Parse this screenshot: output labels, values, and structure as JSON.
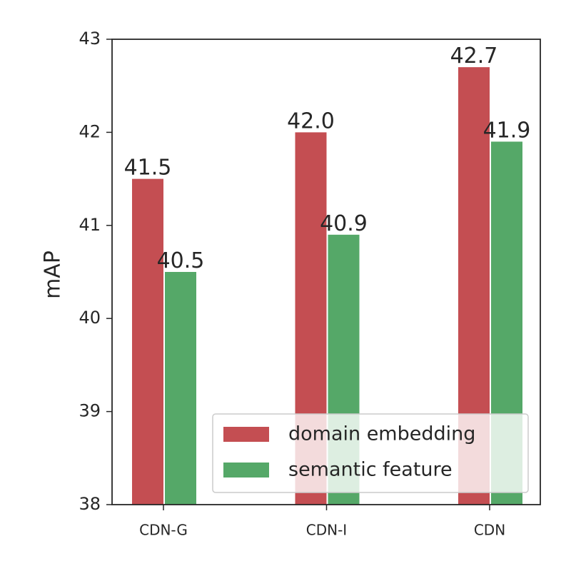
{
  "chart_data": {
    "type": "bar",
    "y_label": "mAP",
    "categories": [
      "CDN-G",
      "CDN-I",
      "CDN"
    ],
    "series": [
      {
        "name": "domain embedding",
        "color": "#c44e52",
        "values": [
          41.5,
          42.0,
          42.7
        ],
        "value_labels": [
          "41.5",
          "42.0",
          "42.7"
        ]
      },
      {
        "name": "semantic feature",
        "color": "#55a868",
        "values": [
          40.5,
          40.9,
          41.9
        ],
        "value_labels": [
          "40.5",
          "40.9",
          "41.9"
        ]
      }
    ],
    "ylim": [
      38,
      43
    ],
    "yticks": [
      38,
      39,
      40,
      41,
      42,
      43
    ],
    "legend": "lower right"
  }
}
